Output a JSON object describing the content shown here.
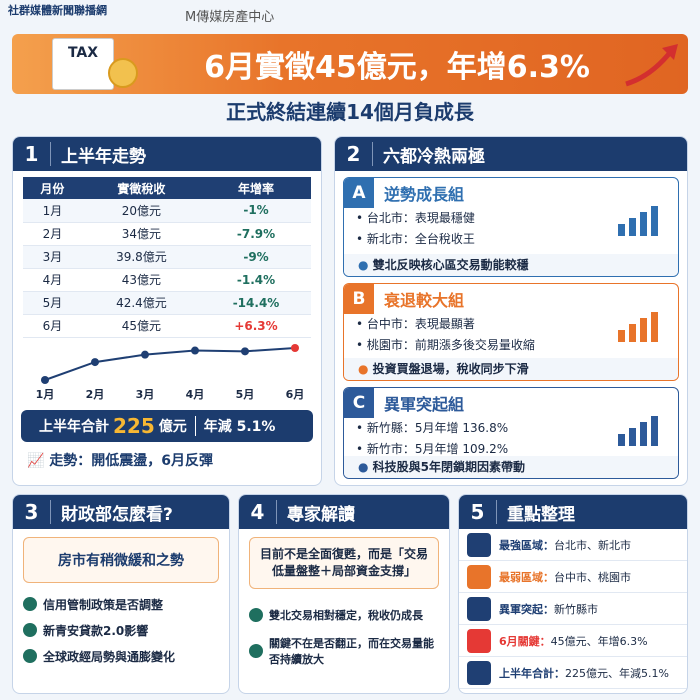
{
  "header": {
    "org": "社群媒體新聞聯播網",
    "brand": "M傳媒房產中心",
    "tax_label": "TAX",
    "title": "6月實徵45億元，年增6.3%",
    "subtitle": "正式終結連續14個月負成長"
  },
  "section1": {
    "number": "1",
    "title": "上半年走勢",
    "table": {
      "columns": [
        "月份",
        "實徵稅收",
        "年增率"
      ],
      "rows": [
        [
          "1月",
          "20億元",
          "-1%"
        ],
        [
          "2月",
          "34億元",
          "-7.9%"
        ],
        [
          "3月",
          "39.8億元",
          "-9%"
        ],
        [
          "4月",
          "43億元",
          "-1.4%"
        ],
        [
          "5月",
          "42.4億元",
          "-14.4%"
        ],
        [
          "6月",
          "45億元",
          "+6.3%"
        ]
      ]
    },
    "chart_data": {
      "type": "line",
      "categories": [
        "1月",
        "2月",
        "3月",
        "4月",
        "5月",
        "6月"
      ],
      "values": [
        20,
        34,
        39.8,
        43,
        42.4,
        45
      ],
      "color": "#1f3f73",
      "last_point_color": "#e53935"
    },
    "summary": {
      "label": "上半年合計",
      "amount": "225",
      "unit": "億元",
      "change": "年減 5.1%"
    },
    "trend": "走勢：開低震盪，6月反彈"
  },
  "section2": {
    "number": "2",
    "title": "六都冷熱兩極",
    "groups": [
      {
        "letter": "A",
        "title": "逆勢成長組",
        "color": "#2f6fb0",
        "items": [
          "台北市：表現最穩健",
          "新北市：全台稅收王"
        ],
        "note": "雙北反映核心區交易動能較穩"
      },
      {
        "letter": "B",
        "title": "衰退較大組",
        "color": "#e8742a",
        "items": [
          "台中市：表現最顯著",
          "桃園市：前期漲多後交易量收縮"
        ],
        "note": "投資買盤退場，稅收同步下滑"
      },
      {
        "letter": "C",
        "title": "異軍突起組",
        "color": "#2d5a9a",
        "items": [
          "新竹縣：5月年增 136.8%",
          "新竹市：5月年增 109.2%"
        ],
        "note": "科技股與5年閉鎖期因素帶動"
      }
    ]
  },
  "section3": {
    "number": "3",
    "title": "財政部怎麼看?",
    "quote": "房市有稍微緩和之勢",
    "items": [
      "信用管制政策是否調整",
      "新青安貸款2.0影響",
      "全球政經局勢與通膨變化"
    ]
  },
  "section4": {
    "number": "4",
    "title": "專家解讀",
    "quote": "目前不是全面復甦，而是「交易低量盤整＋局部資金支撐」",
    "items": [
      "雙北交易相對穩定，稅收仍成長",
      "關鍵不在是否翻正，而在交易量能否持續放大"
    ]
  },
  "section5": {
    "number": "5",
    "title": "重點整理",
    "items": [
      {
        "label": "最強區域：",
        "text": "台北市、新北市",
        "color": "#1f3f73"
      },
      {
        "label": "最弱區域：",
        "text": "台中市、桃園市",
        "color": "#e8742a"
      },
      {
        "label": "異軍突起：",
        "text": "新竹縣市",
        "color": "#1f3f73"
      },
      {
        "label": "6月關鍵：",
        "text": "45億元、年增6.3%",
        "color": "#e53935"
      },
      {
        "label": "上半年合計：",
        "text": "225億元、年減5.1%",
        "color": "#1f3f73"
      }
    ]
  }
}
